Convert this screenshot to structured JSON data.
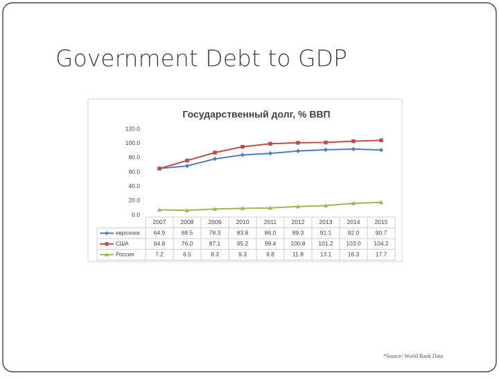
{
  "slide_title": "Government Debt to GDP",
  "source": "*Source: World Bank Data",
  "chart_data": {
    "type": "line",
    "title": "Государственный долг, % ВВП",
    "categories": [
      "2007",
      "2008",
      "2009",
      "2010",
      "2011",
      "2012",
      "2013",
      "2014",
      "2015"
    ],
    "ylim": [
      0,
      120
    ],
    "yticks": [
      {
        "value": 0,
        "label": "0.0"
      },
      {
        "value": 20,
        "label": "20.0"
      },
      {
        "value": 40,
        "label": "40.0"
      },
      {
        "value": 60,
        "label": "60.0"
      },
      {
        "value": 80,
        "label": "80.0"
      },
      {
        "value": 100,
        "label": "100.0"
      },
      {
        "value": 120,
        "label": "120.0"
      }
    ],
    "grid": false,
    "series": [
      {
        "name": "еврозона",
        "color": "#4a7ebb",
        "marker": "diamond",
        "values": [
          64.9,
          68.5,
          78.3,
          83.8,
          86.0,
          89.3,
          91.1,
          92.0,
          90.7
        ],
        "value_labels": [
          "64.9",
          "68.5",
          "78.3",
          "83.8",
          "86.0",
          "89.3",
          "91.1",
          "92.0",
          "90.7"
        ]
      },
      {
        "name": "США",
        "color": "#be4b48",
        "marker": "square",
        "values": [
          64.8,
          76.0,
          87.1,
          95.2,
          99.4,
          100.8,
          101.2,
          103.0,
          104.2
        ],
        "value_labels": [
          "64.8",
          "76.0",
          "87.1",
          "95.2",
          "99.4",
          "100.8",
          "101.2",
          "103.0",
          "104.2"
        ]
      },
      {
        "name": "Россия",
        "color": "#98b954",
        "marker": "triangle",
        "values": [
          7.2,
          6.5,
          8.3,
          9.3,
          9.8,
          11.8,
          13.1,
          16.3,
          17.7
        ],
        "value_labels": [
          "7.2",
          "6.5",
          "8.3",
          "9.3",
          "9.8",
          "11.8",
          "13.1",
          "16.3",
          "17.7"
        ]
      }
    ]
  }
}
